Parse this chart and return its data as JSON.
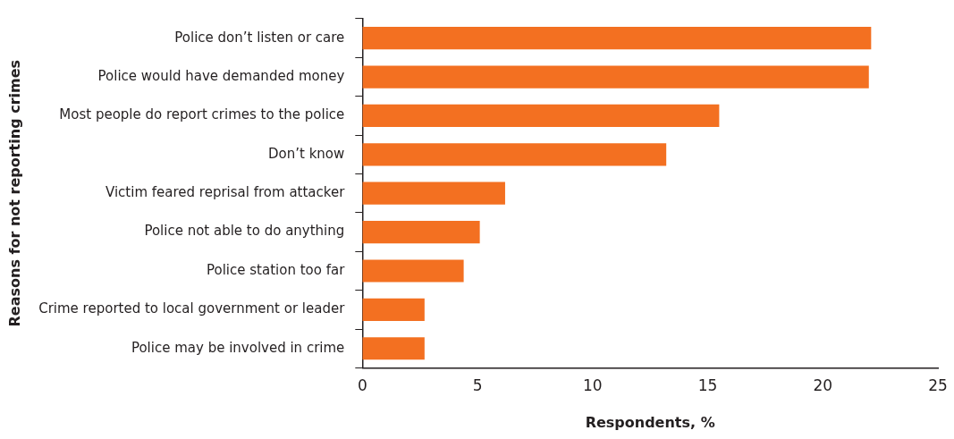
{
  "chart_data": {
    "type": "bar",
    "orientation": "horizontal",
    "categories": [
      "Police don’t listen or care",
      "Police would have demanded money",
      "Most people do report crimes to the police",
      "Don’t know",
      "Victim feared reprisal from attacker",
      "Police not able to do anything",
      "Police station too far",
      "Crime reported to local government or leader",
      "Police may be involved in crime"
    ],
    "values": [
      22.1,
      22.0,
      15.5,
      13.2,
      6.2,
      5.1,
      4.4,
      2.7,
      2.7
    ],
    "color": "#f37021",
    "xlim": [
      0,
      25
    ],
    "xticks": [
      0,
      5,
      10,
      15,
      20,
      25
    ],
    "xlabel": "Respondents, %",
    "ylabel": "Reasons for not reporting crimes",
    "grid": false,
    "legend": false
  }
}
